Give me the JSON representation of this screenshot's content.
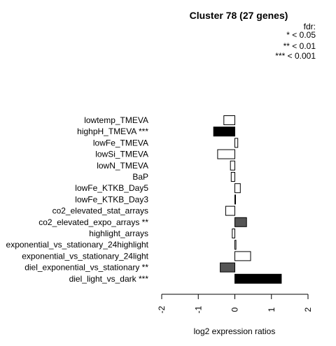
{
  "chart_data": {
    "type": "bar",
    "orientation": "horizontal",
    "title": "Cluster 78 (27 genes)",
    "xlabel": "log2 expression ratios",
    "xlim": [
      -2,
      2
    ],
    "xticks": [
      "-2",
      "-1",
      "0",
      "1",
      "2"
    ],
    "legend": {
      "title": "fdr:",
      "entries": [
        "* < 0.05",
        "** < 0.01",
        "*** < 0.001"
      ],
      "position": "top-right"
    },
    "categories": [
      "lowtemp_TMEVA",
      "highpH_TMEVA ***",
      "lowFe_TMEVA",
      "lowSi_TMEVA",
      "lowN_TMEVA",
      "BaP",
      "lowFe_KTKB_Day5",
      "lowFe_KTKB_Day3",
      "co2_elevated_stat_arrays",
      "co2_elevated_expo_arrays **",
      "highlight_arrays",
      "exponential_vs_stationary_24highlight",
      "exponential_vs_stationary_24light",
      "diel_exponential_vs_stationary **",
      "diel_light_vs_dark ***"
    ],
    "values": [
      -0.3,
      -0.58,
      0.08,
      -0.47,
      -0.12,
      -0.1,
      0.15,
      0.01,
      -0.25,
      0.32,
      -0.07,
      0.03,
      0.43,
      -0.4,
      1.27
    ],
    "fill": [
      "#ffffff",
      "#000000",
      "#ffffff",
      "#ffffff",
      "#ffffff",
      "#ffffff",
      "#ffffff",
      "#ffffff",
      "#ffffff",
      "#555555",
      "#ffffff",
      "#ffffff",
      "#ffffff",
      "#555555",
      "#000000"
    ]
  }
}
